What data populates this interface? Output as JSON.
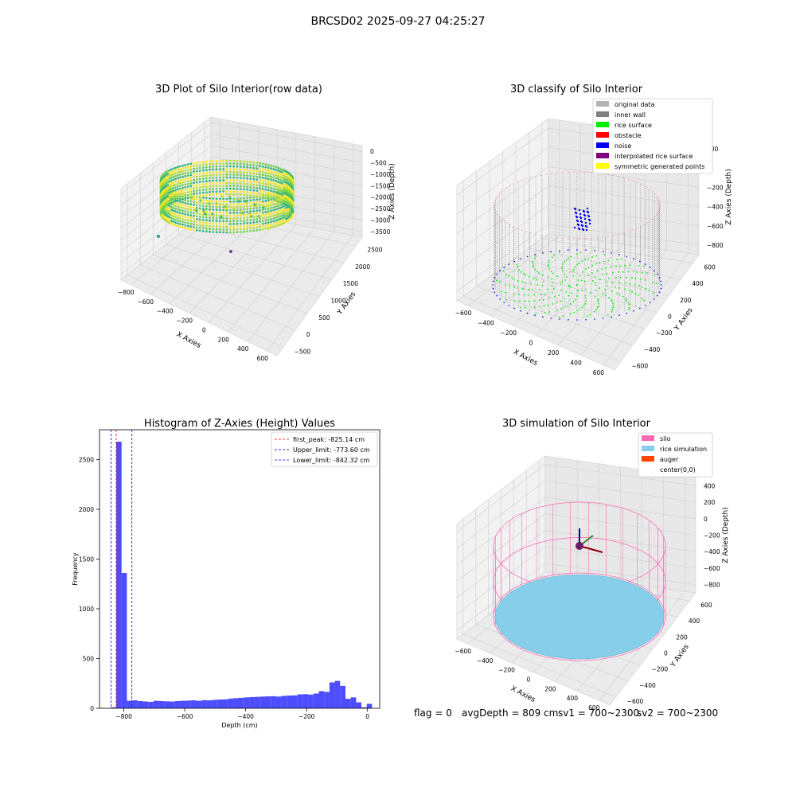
{
  "figure": {
    "suptitle": "BRCSD02 2025-09-27 04:25:27"
  },
  "chart_data": [
    {
      "type": "scatter3d",
      "title": "3D Plot of Silo Interior(row data)",
      "xlabel": "X Axies",
      "ylabel": "Y Axies",
      "zlabel": "Z Axies (Depth)",
      "x_ticks": [
        "−800",
        "−600",
        "−400",
        "−200",
        "0",
        "200",
        "400",
        "600"
      ],
      "y_ticks": [
        "−500",
        "0",
        "500",
        "1000",
        "1500",
        "2000",
        "2500"
      ],
      "z_ticks": [
        "0",
        "−500",
        "−1000",
        "−1500",
        "−2000",
        "−2500",
        "−3000",
        "−3500"
      ],
      "colormap": [
        "#fde725",
        "#b5de2b",
        "#6ece58",
        "#35b779"
      ],
      "outliers": [
        {
          "name": "outlier-point-teal",
          "color": "#2a9d8f"
        },
        {
          "name": "outlier-point-purple",
          "color": "#7b3f8f"
        }
      ]
    },
    {
      "type": "scatter3d",
      "title": "3D classify of Silo Interior",
      "xlabel": "X Axies",
      "ylabel": "Y Axies",
      "zlabel": "Z Axies (Depth)",
      "x_ticks": [
        "−600",
        "−400",
        "−200",
        "0",
        "200",
        "400",
        "600"
      ],
      "y_ticks": [
        "−600",
        "−400",
        "−200",
        "0",
        "200",
        "400",
        "600"
      ],
      "z_ticks": [
        "200",
        "0",
        "−200",
        "−400",
        "−600",
        "−800"
      ],
      "legend": [
        {
          "label": "original data",
          "color": "#b3b3b3"
        },
        {
          "label": "inner wall",
          "color": "#808080"
        },
        {
          "label": "rice surface",
          "color": "#00ee00"
        },
        {
          "label": "obstacle",
          "color": "#ff0000"
        },
        {
          "label": "noise",
          "color": "#0000ee"
        },
        {
          "label": "interpolated rice surface",
          "color": "#800080"
        },
        {
          "label": "symmetric generated points",
          "color": "#ffff00"
        }
      ]
    },
    {
      "type": "bar",
      "title": "Histogram of Z-Axies (Height) Values",
      "xlabel": "Depth (cm)",
      "ylabel": "Frequency",
      "xlim": [
        -880,
        40
      ],
      "ylim": [
        0,
        2800
      ],
      "x_ticks": [
        -800,
        -600,
        -400,
        -200,
        0
      ],
      "x_tick_labels": [
        "−800",
        "−600",
        "−400",
        "−200",
        "0"
      ],
      "y_ticks": [
        0,
        500,
        1000,
        1500,
        2000,
        2500
      ],
      "y_tick_labels": [
        "0",
        "500",
        "1000",
        "1500",
        "2000",
        "2500"
      ],
      "bar_color": "#4d4dff",
      "bin_width": 17.5,
      "bins": [
        [
          -842.5,
          10
        ],
        [
          -825,
          2680
        ],
        [
          -807.5,
          1360
        ],
        [
          -790,
          75
        ],
        [
          -772.5,
          80
        ],
        [
          -755,
          72
        ],
        [
          -737.5,
          68
        ],
        [
          -720,
          65
        ],
        [
          -702.5,
          75
        ],
        [
          -685,
          72
        ],
        [
          -667.5,
          70
        ],
        [
          -650,
          68
        ],
        [
          -632.5,
          72
        ],
        [
          -615,
          75
        ],
        [
          -597.5,
          78
        ],
        [
          -580,
          80
        ],
        [
          -562.5,
          75
        ],
        [
          -545,
          82
        ],
        [
          -527.5,
          80
        ],
        [
          -510,
          85
        ],
        [
          -492.5,
          88
        ],
        [
          -475,
          90
        ],
        [
          -457.5,
          98
        ],
        [
          -440,
          102
        ],
        [
          -422.5,
          105
        ],
        [
          -405,
          110
        ],
        [
          -387.5,
          112
        ],
        [
          -370,
          115
        ],
        [
          -352.5,
          118
        ],
        [
          -335,
          120
        ],
        [
          -317.5,
          122
        ],
        [
          -300,
          118
        ],
        [
          -282.5,
          125
        ],
        [
          -265,
          128
        ],
        [
          -247.5,
          130
        ],
        [
          -230,
          140
        ],
        [
          -212.5,
          142
        ],
        [
          -195,
          138
        ],
        [
          -177.5,
          148
        ],
        [
          -160,
          172
        ],
        [
          -142.5,
          165
        ],
        [
          -125,
          260
        ],
        [
          -107.5,
          275
        ],
        [
          -90,
          225
        ],
        [
          -72.5,
          95
        ],
        [
          -55,
          110
        ],
        [
          -37.5,
          60
        ],
        [
          -20,
          10
        ],
        [
          -2.5,
          45
        ]
      ],
      "vlines": [
        {
          "label": "first_peak: -825.14 cm",
          "x": -825.14,
          "color": "#ff0000"
        },
        {
          "label": "Upper_limit: -773.60 cm",
          "x": -773.6,
          "color": "#0000ff"
        },
        {
          "label": "Lower_limit: -842.32 cm",
          "x": -842.32,
          "color": "#0000ff"
        }
      ]
    },
    {
      "type": "surface3d",
      "title": "3D simulation of Silo Interior",
      "xlabel": "X Axies",
      "ylabel": "Y Axies",
      "zlabel": "Z Axies (Depth)",
      "x_ticks": [
        "−600",
        "−400",
        "−200",
        "0",
        "200",
        "400",
        "600"
      ],
      "y_ticks": [
        "−600",
        "−400",
        "−200",
        "0",
        "200",
        "400",
        "600"
      ],
      "z_ticks": [
        "400",
        "200",
        "0",
        "−200",
        "−400",
        "−600",
        "−800"
      ],
      "legend": [
        {
          "label": "silo",
          "color": "#ff69b4"
        },
        {
          "label": "rice simulation",
          "color": "#87ceeb"
        },
        {
          "label": "auger",
          "color": "#ff4500"
        },
        {
          "label": "center(0,0)",
          "color": ""
        }
      ]
    }
  ],
  "footer": {
    "flag": "flag = 0",
    "avg_depth": "avgDepth = 809 cm",
    "sv1": "sv1 = 700~2300",
    "sv2": "sv2 = 700~2300"
  }
}
